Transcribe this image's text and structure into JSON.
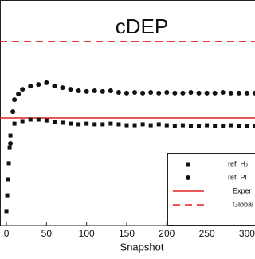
{
  "chart_data": {
    "type": "scatter",
    "title": "cDEP",
    "x_label": "Snapshot",
    "xlim": [
      -8,
      312
    ],
    "ylim": [
      0,
      100
    ],
    "xticks": [
      0,
      50,
      100,
      150,
      200,
      250,
      300
    ],
    "series": [
      {
        "name": "ref. H₂",
        "color": "#111111",
        "marker": "square",
        "x": [
          0,
          1,
          2,
          3,
          4,
          5,
          10,
          20,
          30,
          40,
          50,
          60,
          70,
          80,
          90,
          100,
          110,
          120,
          130,
          140,
          150,
          160,
          170,
          180,
          190,
          200,
          210,
          220,
          230,
          240,
          250,
          260,
          270,
          280,
          290,
          300,
          310
        ],
        "values": [
          6.4,
          13.4,
          20.5,
          27.6,
          34.6,
          39.9,
          45.2,
          46.3,
          47.0,
          47.0,
          46.6,
          45.9,
          45.6,
          45.2,
          44.9,
          45.2,
          44.9,
          44.9,
          45.2,
          44.9,
          44.5,
          44.5,
          44.9,
          44.5,
          44.9,
          44.5,
          44.2,
          44.5,
          44.2,
          44.2,
          44.5,
          44.2,
          44.2,
          44.5,
          44.2,
          44.2,
          44.2
        ]
      },
      {
        "name": "ref. Pl",
        "color": "#111111",
        "marker": "circle",
        "x": [
          5,
          8,
          10,
          15,
          20,
          30,
          40,
          50,
          60,
          70,
          80,
          90,
          100,
          110,
          120,
          130,
          140,
          150,
          160,
          170,
          180,
          190,
          200,
          210,
          220,
          230,
          240,
          250,
          260,
          270,
          280,
          290,
          300,
          310
        ],
        "values": [
          36.4,
          50.5,
          55.8,
          58.3,
          60.4,
          61.8,
          62.5,
          63.3,
          61.8,
          61.1,
          60.4,
          59.7,
          59.4,
          59.7,
          59.4,
          59.7,
          59.0,
          58.7,
          59.0,
          58.7,
          59.0,
          58.7,
          59.0,
          58.7,
          58.7,
          59.0,
          58.7,
          58.7,
          58.7,
          59.0,
          58.7,
          58.7,
          58.7,
          58.7
        ]
      }
    ],
    "reference_lines": [
      {
        "name": "Exper",
        "color": "#e02020",
        "style": "solid",
        "value": 47.7
      },
      {
        "name": "Global",
        "color": "#e02020",
        "style": "dashed",
        "value": 81.6
      }
    ]
  }
}
